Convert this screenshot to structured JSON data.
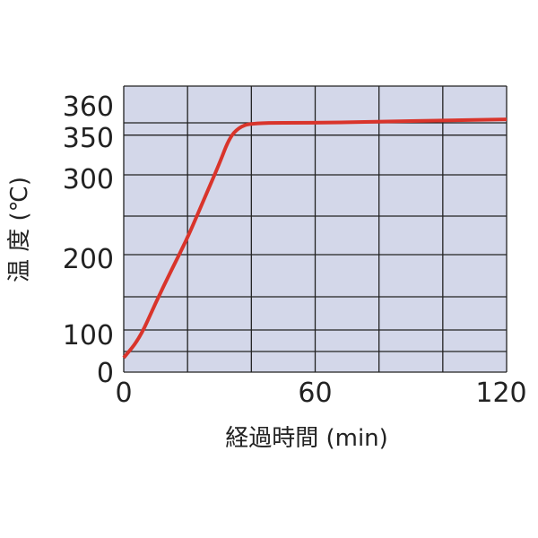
{
  "chart_data": {
    "type": "line",
    "title": "",
    "xlabel": "経過時間 (min)",
    "ylabel": "温 度 (℃)",
    "xlim": [
      0,
      120
    ],
    "x_ticks": [
      "0",
      "60",
      "120"
    ],
    "y_ticks": [
      "0",
      "100",
      "200",
      "300",
      "350",
      "360"
    ],
    "grid": true,
    "plot_background": "#d3d7e9",
    "line_color": "#d9342b",
    "series": [
      {
        "x": [
          0,
          5,
          10,
          15,
          20,
          25,
          30,
          33,
          36,
          40,
          60,
          80,
          100,
          120
        ],
        "values": [
          34,
          80,
          136,
          180,
          221,
          268,
          314,
          345,
          356,
          360,
          360,
          361,
          362,
          363
        ]
      }
    ]
  }
}
